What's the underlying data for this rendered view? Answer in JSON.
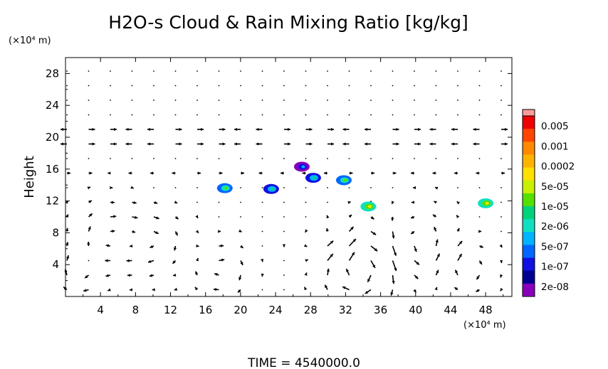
{
  "chart_data": {
    "type": "heatmap",
    "title": "H2O-s Cloud & Rain Mixing Ratio [kg/kg]",
    "ylabel": "Height",
    "y_unit": "(×10⁴ m)",
    "x_unit": "(×10⁴ m)",
    "xlim": [
      0,
      51
    ],
    "ylim": [
      0,
      30
    ],
    "xticks": [
      "4",
      "8",
      "12",
      "16",
      "20",
      "24",
      "28",
      "32",
      "36",
      "40",
      "44",
      "48"
    ],
    "yticks": [
      "4",
      "8",
      "12",
      "16",
      "20",
      "24",
      "28"
    ],
    "colorbar": {
      "labels": [
        "0.005",
        "0.001",
        "0.0002",
        "5e-05",
        "1e-05",
        "2e-06",
        "5e-07",
        "1e-07",
        "2e-08"
      ],
      "colors": [
        "#ee0000",
        "#ff4400",
        "#ff8800",
        "#ffb300",
        "#ffe000",
        "#c8f000",
        "#55e000",
        "#00d27a",
        "#10e0c0",
        "#00b4ff",
        "#0066ff",
        "#1010e0",
        "#000090",
        "#8800bb"
      ],
      "top_color": "#ff9a9a"
    },
    "cloud_features": [
      {
        "x": 23.5,
        "y": 13.5,
        "level": 11
      },
      {
        "x": 18.2,
        "y": 13.6,
        "level": 10
      },
      {
        "x": 28.3,
        "y": 14.9,
        "level": 11
      },
      {
        "x": 31.8,
        "y": 14.6,
        "level": 10
      },
      {
        "x": 34.6,
        "y": 11.3,
        "level": 8
      },
      {
        "x": 48.0,
        "y": 11.7,
        "level": 8
      },
      {
        "x": 27.0,
        "y": 16.3,
        "level": 13
      }
    ],
    "time_label": "TIME  =  4540000.0"
  }
}
